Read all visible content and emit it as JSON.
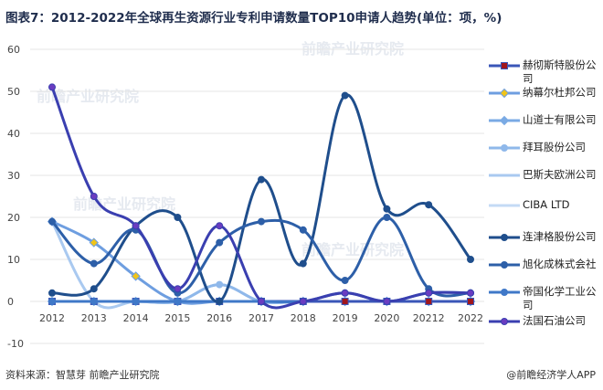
{
  "page": {
    "title": "图表7：2012-2022年全球再生资源行业专利申请数量TOP10申请人趋势(单位：项，%)",
    "source": "资料来源：智慧芽 前瞻产业研究院",
    "credit": "@前瞻经济学人APP",
    "watermark": "前瞻产业研究院"
  },
  "chart_data": {
    "type": "line",
    "title": "图表7：2012-2022年全球再生资源行业专利申请数量TOP10申请人趋势(单位：项，%)",
    "x": [
      "2012",
      "2013",
      "2014",
      "2015",
      "2016",
      "2017",
      "2018",
      "2019",
      "2020",
      "20212",
      "2022"
    ],
    "ylim": [
      -10,
      60
    ],
    "yticks": [
      -10,
      0,
      10,
      20,
      30,
      40,
      50,
      60
    ],
    "grid": true,
    "legend_position": "right",
    "series": [
      {
        "name": "赫彻斯特股份公司",
        "color": "#3a56b8",
        "marker": "square",
        "marker_color": "#a0161c",
        "values": [
          0,
          0,
          0,
          0,
          0,
          0,
          0,
          0,
          0,
          0,
          0
        ]
      },
      {
        "name": "纳幕尔杜邦公司",
        "color": "#6e9ee0",
        "marker": "diamond",
        "marker_color": "#f0c419",
        "values": [
          19,
          14,
          6,
          0,
          0,
          0,
          0,
          0,
          0,
          0,
          0
        ]
      },
      {
        "name": "山道士有限公司",
        "color": "#7aaae4",
        "marker": "diamond",
        "marker_color": "#7aaae4",
        "values": [
          0,
          0,
          0,
          0,
          0,
          0,
          0,
          0,
          0,
          0,
          0
        ]
      },
      {
        "name": "拜耳股份公司",
        "color": "#8fb8ea",
        "marker": "circle",
        "marker_color": "#8fb8ea",
        "values": [
          0,
          0,
          0,
          0,
          4,
          0,
          0,
          0,
          0,
          0,
          0
        ]
      },
      {
        "name": "巴斯夫欧洲公司",
        "color": "#a9c9f0",
        "marker": "none",
        "marker_color": "#a9c9f0",
        "values": [
          19,
          0,
          0,
          0,
          4,
          0,
          0,
          0,
          0,
          0,
          0
        ]
      },
      {
        "name": "CIBA LTD",
        "color": "#c4daf5",
        "marker": "none",
        "marker_color": "#c4daf5",
        "values": [
          0,
          0,
          0,
          0,
          0,
          0,
          0,
          0,
          0,
          0,
          0
        ]
      },
      {
        "name": "连津格股份公司",
        "color": "#1f4e8c",
        "marker": "circle",
        "marker_color": "#1f4e8c",
        "values": [
          2,
          3,
          18,
          20,
          0,
          29,
          9,
          49,
          22,
          23,
          10
        ]
      },
      {
        "name": "旭化成株式会社",
        "color": "#2d5fa8",
        "marker": "circle",
        "marker_color": "#2d5fa8",
        "values": [
          19,
          9,
          17,
          2,
          14,
          19,
          17,
          5,
          20,
          3,
          2
        ]
      },
      {
        "name": "帝国化学工业公司",
        "color": "#3f78c8",
        "marker": "circle",
        "marker_color": "#3f78c8",
        "values": [
          0,
          0,
          0,
          0,
          0,
          0,
          0,
          2,
          0,
          2,
          2
        ]
      },
      {
        "name": "法国石油公司",
        "color": "#3a3fb0",
        "marker": "circle",
        "marker_color": "#6a3cc0",
        "values": [
          51,
          25,
          18,
          3,
          18,
          0,
          0,
          2,
          0,
          2,
          2
        ]
      }
    ]
  }
}
